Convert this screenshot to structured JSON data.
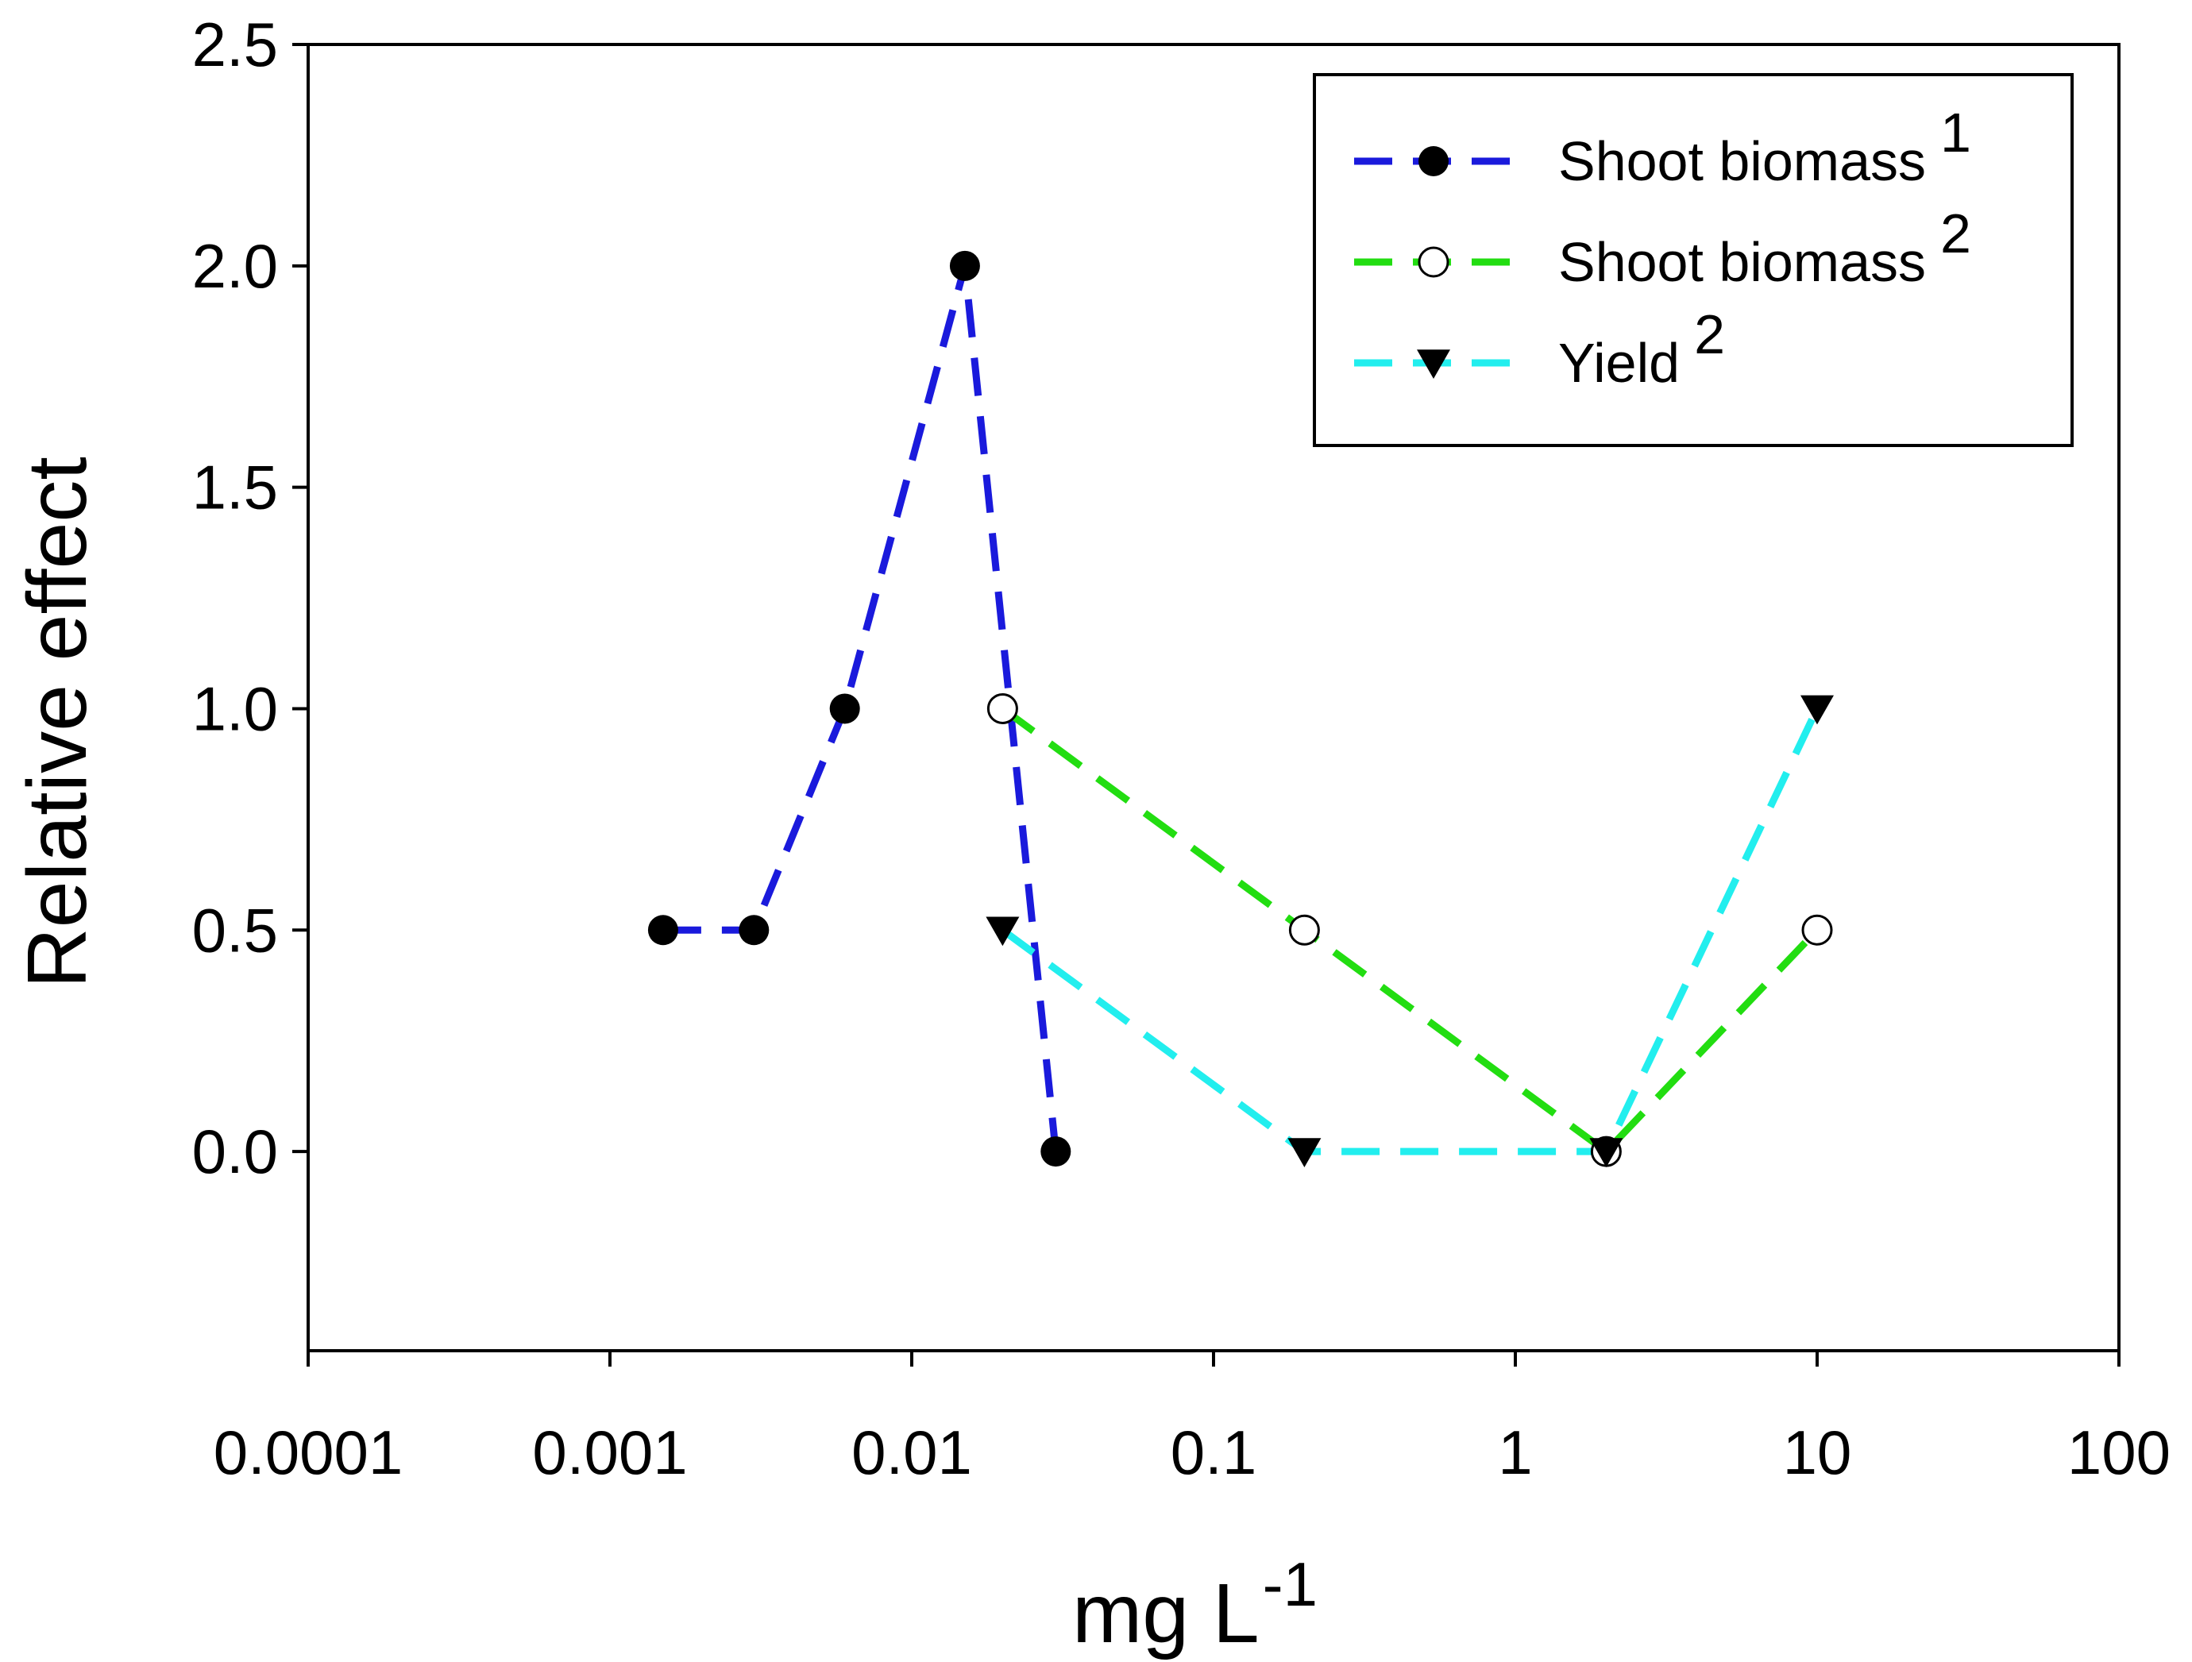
{
  "chart_data": {
    "type": "line",
    "title": "",
    "xlabel": "mg L",
    "xlabel_superscript": "-1",
    "ylabel": "Relative effect",
    "xscale": "log",
    "xlim": [
      0.0001,
      100
    ],
    "ylim": [
      -0.45,
      2.5
    ],
    "grid": false,
    "legend_position": "top-right",
    "x_ticks": [
      0.0001,
      0.001,
      0.01,
      0.1,
      1,
      10,
      100
    ],
    "x_tick_labels": [
      "0.0001",
      "0.001",
      "0.01",
      "0.1",
      "1",
      "10",
      "100"
    ],
    "y_ticks": [
      0.0,
      0.5,
      1.0,
      1.5,
      2.0,
      2.5
    ],
    "y_tick_labels": [
      "0.0",
      "0.5",
      "1.0",
      "1.5",
      "2.0",
      "2.5"
    ],
    "series": [
      {
        "name": "Shoot biomass",
        "superscript": "1",
        "color": "#1a1adc",
        "marker": "filled-circle",
        "x": [
          0.0015,
          0.003,
          0.006,
          0.015,
          0.03
        ],
        "y": [
          0.5,
          0.5,
          1.0,
          2.0,
          0.0
        ]
      },
      {
        "name": "Shoot biomass",
        "superscript": "2",
        "color": "#22dd11",
        "marker": "open-circle",
        "x": [
          0.02,
          0.2,
          2,
          10
        ],
        "y": [
          1.0,
          0.5,
          0.0,
          0.5
        ]
      },
      {
        "name": "Yield",
        "superscript": "2",
        "color": "#22eeee",
        "marker": "filled-triangle-down",
        "x": [
          0.02,
          0.2,
          2,
          10
        ],
        "y": [
          0.5,
          0.0,
          0.0,
          1.0
        ]
      }
    ]
  }
}
